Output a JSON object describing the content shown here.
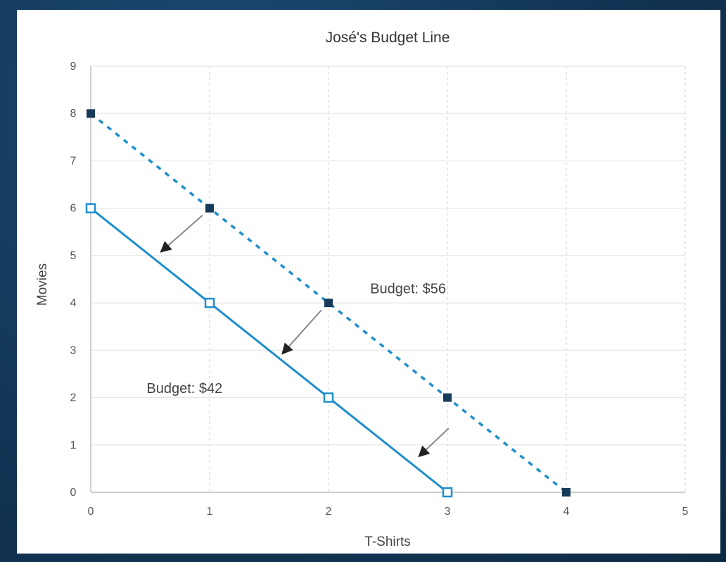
{
  "chart_data": {
    "type": "line",
    "title": "José's Budget Line",
    "xlabel": "T-Shirts",
    "ylabel": "Movies",
    "xlim": [
      0,
      5
    ],
    "ylim": [
      0,
      9
    ],
    "x_ticks": [
      0,
      1,
      2,
      3,
      4,
      5
    ],
    "y_ticks": [
      0,
      1,
      2,
      3,
      4,
      5,
      6,
      7,
      8,
      9
    ],
    "grid": true,
    "series": [
      {
        "line_style": "dashed",
        "marker": "filled-square",
        "color": "#1f8ecd",
        "marker_color": "#163a5a",
        "points": [
          [
            0,
            8
          ],
          [
            1,
            6
          ],
          [
            2,
            4
          ],
          [
            3,
            2
          ],
          [
            4,
            0
          ]
        ]
      },
      {
        "line_style": "solid",
        "marker": "hollow-square",
        "color": "#1f8ecd",
        "marker_color": "#1f8ecd",
        "points": [
          [
            0,
            6
          ],
          [
            1,
            4
          ],
          [
            2,
            2
          ],
          [
            3,
            0
          ]
        ]
      }
    ],
    "annotations": [
      {
        "text": "Budget: $56",
        "x": 2.35,
        "y": 4.2
      },
      {
        "text": "Budget: $42",
        "x": 0.47,
        "y": 2.1
      }
    ],
    "arrows": [
      {
        "from": [
          1,
          6
        ],
        "to": [
          0.6,
          5.1
        ]
      },
      {
        "from": [
          2,
          4
        ],
        "to": [
          1.62,
          2.95
        ]
      },
      {
        "from": [
          3.07,
          1.5
        ],
        "to": [
          2.77,
          0.78
        ]
      }
    ]
  }
}
